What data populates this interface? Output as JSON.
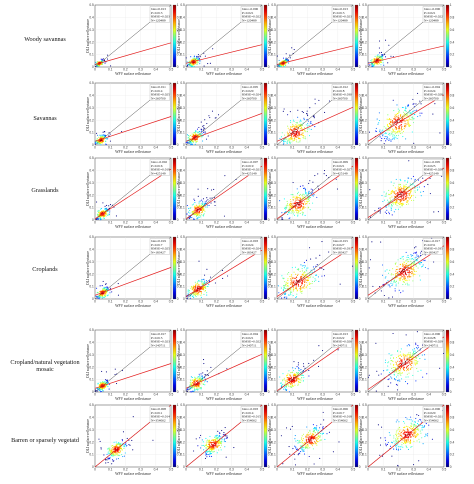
{
  "figure": {
    "row_labels": [
      "Woody savannas",
      "Savannas",
      "Grasslands",
      "Croplands",
      "Cropland/natural vegetation mosaic",
      "Barren or sparsely vegetatd"
    ]
  },
  "chart_data": {
    "type": "scatter",
    "layout": "6 rows x 4 columns density scatter plots",
    "xlabel": "WFV surface reflectance",
    "ylabel": "OLI surface reflectance",
    "xlim": [
      0,
      0.5
    ],
    "ylim": [
      0,
      0.5
    ],
    "xticks": [
      "0",
      "0.1",
      "0.2",
      "0.3",
      "0.4",
      "0.5"
    ],
    "yticks": [
      "0",
      "0.1",
      "0.2",
      "0.3",
      "0.4",
      "0.5"
    ],
    "reference_line": "1:1",
    "colormap": "jet",
    "colorbar_ticks": [
      "0",
      "0.2",
      "0.4",
      "0.6",
      "0.8",
      "1"
    ],
    "panels": [
      {
        "row": 0,
        "col": 0,
        "center": [
          0.03,
          0.03
        ],
        "spread": 0.012,
        "n_points": 140,
        "slope": 0.35,
        "intercept": 0.02,
        "stats": [
          "bias=0.013",
          "P=0.013",
          "RMSE=0.023",
          "N=120489"
        ]
      },
      {
        "row": 0,
        "col": 1,
        "center": [
          0.05,
          0.04
        ],
        "spread": 0.018,
        "n_points": 160,
        "slope": 0.3,
        "intercept": 0.03,
        "stats": [
          "bias=-0.006",
          "P=0.021",
          "RMSE=0.022",
          "N=120489"
        ]
      },
      {
        "row": 0,
        "col": 2,
        "center": [
          0.04,
          0.03
        ],
        "spread": 0.015,
        "n_points": 150,
        "slope": 0.3,
        "intercept": 0.02,
        "stats": [
          "bias=0.013",
          "P=0.013",
          "RMSE=0.023",
          "N=120489"
        ]
      },
      {
        "row": 0,
        "col": 3,
        "center": [
          0.06,
          0.05
        ],
        "spread": 0.022,
        "n_points": 170,
        "slope": 0.28,
        "intercept": 0.03,
        "stats": [
          "bias=-0.006",
          "P=0.021",
          "RMSE=0.022",
          "N=120489"
        ]
      },
      {
        "row": 1,
        "col": 0,
        "center": [
          0.04,
          0.04
        ],
        "spread": 0.018,
        "n_points": 170,
        "slope": 0.4,
        "intercept": 0.03,
        "stats": [
          "bias=0.011",
          "P=0.014",
          "RMSE=0.025",
          "N=260700"
        ]
      },
      {
        "row": 1,
        "col": 1,
        "center": [
          0.06,
          0.06
        ],
        "spread": 0.025,
        "n_points": 200,
        "slope": 0.45,
        "intercept": 0.03,
        "stats": [
          "bias=-0.005",
          "P=0.020",
          "RMSE=0.024",
          "N=260700"
        ]
      },
      {
        "row": 1,
        "col": 2,
        "center": [
          0.12,
          0.1
        ],
        "spread": 0.05,
        "n_points": 260,
        "slope": 0.55,
        "intercept": 0.03,
        "stats": [
          "bias=0.012",
          "P=0.018",
          "RMSE=0.030",
          "N=260700"
        ]
      },
      {
        "row": 1,
        "col": 3,
        "center": [
          0.2,
          0.18
        ],
        "spread": 0.06,
        "n_points": 300,
        "slope": 0.75,
        "intercept": 0.03,
        "stats": [
          "bias=-0.004",
          "P=0.024",
          "RMSE=0.028",
          "N=260700"
        ]
      },
      {
        "row": 2,
        "col": 0,
        "center": [
          0.05,
          0.05
        ],
        "spread": 0.02,
        "n_points": 180,
        "slope": 0.8,
        "intercept": 0.01,
        "stats": [
          "bias=-0.002",
          "P=0.016",
          "RMSE=0.019",
          "N=425149"
        ]
      },
      {
        "row": 2,
        "col": 1,
        "center": [
          0.08,
          0.08
        ],
        "spread": 0.03,
        "n_points": 220,
        "slope": 0.85,
        "intercept": 0.01,
        "stats": [
          "bias=-0.007",
          "P=0.019",
          "RMSE=0.021",
          "N=425149"
        ]
      },
      {
        "row": 2,
        "col": 2,
        "center": [
          0.14,
          0.13
        ],
        "spread": 0.05,
        "n_points": 280,
        "slope": 0.85,
        "intercept": 0.01,
        "stats": [
          "bias=0.009",
          "P=0.021",
          "RMSE=0.027",
          "N=425149"
        ]
      },
      {
        "row": 2,
        "col": 3,
        "center": [
          0.22,
          0.2
        ],
        "spread": 0.06,
        "n_points": 320,
        "slope": 0.8,
        "intercept": 0.02,
        "stats": [
          "bias=-0.005",
          "P=0.025",
          "RMSE=0.028",
          "N=425149"
        ]
      },
      {
        "row": 3,
        "col": 0,
        "center": [
          0.05,
          0.05
        ],
        "spread": 0.02,
        "n_points": 170,
        "slope": 0.45,
        "intercept": 0.03,
        "stats": [
          "bias=0.019",
          "P=0.017",
          "RMSE=0.025",
          "N=183427"
        ]
      },
      {
        "row": 3,
        "col": 1,
        "center": [
          0.08,
          0.08
        ],
        "spread": 0.035,
        "n_points": 230,
        "slope": 0.75,
        "intercept": 0.02,
        "stats": [
          "bias=-0.003",
          "P=0.024",
          "RMSE=0.024",
          "N=183427"
        ]
      },
      {
        "row": 3,
        "col": 2,
        "center": [
          0.14,
          0.14
        ],
        "spread": 0.06,
        "n_points": 300,
        "slope": 0.8,
        "intercept": 0.02,
        "stats": [
          "bias=0.015",
          "P=0.027",
          "RMSE=0.031",
          "N=183427"
        ]
      },
      {
        "row": 3,
        "col": 3,
        "center": [
          0.24,
          0.22
        ],
        "spread": 0.06,
        "n_points": 320,
        "slope": 0.8,
        "intercept": 0.03,
        "stats": [
          "bias=-0.017",
          "P=0.031",
          "RMSE=0.035",
          "N=183427"
        ]
      },
      {
        "row": 4,
        "col": 0,
        "center": [
          0.05,
          0.05
        ],
        "spread": 0.018,
        "n_points": 170,
        "slope": 0.4,
        "intercept": 0.03,
        "stats": [
          "bias=0.017",
          "P=0.015",
          "RMSE=0.023",
          "N=240711"
        ]
      },
      {
        "row": 4,
        "col": 1,
        "center": [
          0.07,
          0.07
        ],
        "spread": 0.028,
        "n_points": 200,
        "slope": 0.55,
        "intercept": 0.03,
        "stats": [
          "bias=-0.004",
          "P=0.021",
          "RMSE=0.022",
          "N=240711"
        ]
      },
      {
        "row": 4,
        "col": 2,
        "center": [
          0.1,
          0.1
        ],
        "spread": 0.04,
        "n_points": 230,
        "slope": 0.85,
        "intercept": 0.01,
        "stats": [
          "bias=0.013",
          "P=0.022",
          "RMSE=0.026",
          "N=240711"
        ]
      },
      {
        "row": 4,
        "col": 3,
        "center": [
          0.24,
          0.23
        ],
        "spread": 0.06,
        "n_points": 300,
        "slope": 0.85,
        "intercept": 0.02,
        "stats": [
          "bias=-0.006",
          "P=0.028",
          "RMSE=0.029",
          "N=240711"
        ]
      },
      {
        "row": 5,
        "col": 0,
        "center": [
          0.14,
          0.14
        ],
        "spread": 0.03,
        "n_points": 220,
        "slope": 1.0,
        "intercept": 0.0,
        "stats": [
          "bias=0.008",
          "P=0.011",
          "RMSE=0.014",
          "N=354062"
        ]
      },
      {
        "row": 5,
        "col": 1,
        "center": [
          0.18,
          0.18
        ],
        "spread": 0.035,
        "n_points": 240,
        "slope": 1.0,
        "intercept": 0.0,
        "stats": [
          "bias=-0.003",
          "P=0.014",
          "RMSE=0.015",
          "N=354062"
        ]
      },
      {
        "row": 5,
        "col": 2,
        "center": [
          0.22,
          0.22
        ],
        "spread": 0.045,
        "n_points": 260,
        "slope": 1.0,
        "intercept": 0.0,
        "stats": [
          "bias=0.006",
          "P=0.017",
          "RMSE=0.018",
          "N=354062"
        ]
      },
      {
        "row": 5,
        "col": 3,
        "center": [
          0.26,
          0.26
        ],
        "spread": 0.055,
        "n_points": 300,
        "slope": 1.0,
        "intercept": 0.0,
        "stats": [
          "bias=-0.006",
          "P=0.020",
          "RMSE=0.021",
          "N=354062"
        ]
      }
    ]
  }
}
